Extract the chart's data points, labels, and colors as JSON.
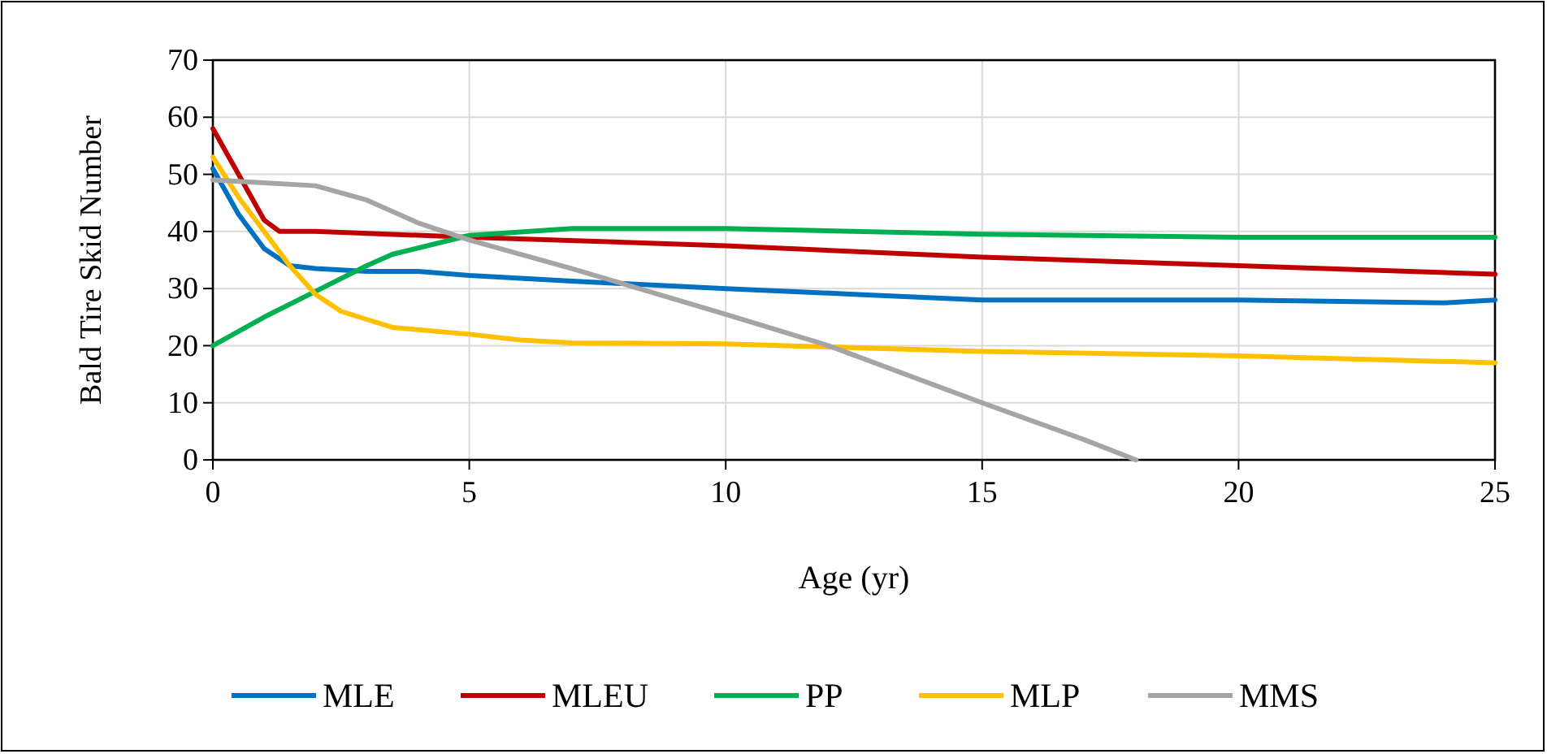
{
  "chart_data": {
    "type": "line",
    "xlabel": "Age (yr)",
    "ylabel": "Bald  Tire Skid Number",
    "xlim": [
      0,
      25
    ],
    "ylim": [
      0,
      70
    ],
    "xticks": [
      0,
      5,
      10,
      15,
      20,
      25
    ],
    "yticks": [
      0,
      10,
      20,
      30,
      40,
      50,
      60,
      70
    ],
    "grid": true,
    "legend": "bottom",
    "marker": "none",
    "line_style": "solid",
    "series": [
      {
        "name": "MLE",
        "color": "#0070c0",
        "x": [
          0,
          0.5,
          1,
          1.5,
          2,
          3,
          4,
          5,
          7,
          10,
          12.5,
          15,
          20,
          24,
          25
        ],
        "values": [
          51,
          43,
          37,
          34,
          33.5,
          33,
          33,
          32.3,
          31.3,
          30,
          29,
          28,
          28,
          27.5,
          28
        ]
      },
      {
        "name": "MLEU",
        "color": "#c00000",
        "x": [
          0,
          0.5,
          1,
          1.3,
          2,
          5,
          10,
          15,
          20,
          25
        ],
        "values": [
          58,
          50,
          42,
          40,
          40,
          39,
          37.5,
          35.5,
          34,
          32.5
        ]
      },
      {
        "name": "PP",
        "color": "#00b050",
        "x": [
          0,
          1,
          2,
          3,
          3.5,
          5,
          7,
          10,
          15,
          20,
          25
        ],
        "values": [
          20,
          25,
          29.5,
          34,
          36,
          39.3,
          40.5,
          40.5,
          39.5,
          39,
          39
        ]
      },
      {
        "name": "MLP",
        "color": "#ffc000",
        "x": [
          0,
          0.5,
          1,
          1.5,
          2,
          2.5,
          3.5,
          5,
          6,
          7,
          10,
          15,
          20,
          25
        ],
        "values": [
          53,
          46,
          40,
          34,
          29,
          26,
          23.2,
          22,
          21,
          20.5,
          20.3,
          19,
          18.2,
          17
        ]
      },
      {
        "name": "MMS",
        "color": "#a5a5a5",
        "x": [
          0,
          1,
          2,
          3,
          4,
          5,
          7,
          10,
          12,
          15,
          17,
          18
        ],
        "values": [
          49,
          48.5,
          48,
          45.5,
          41.5,
          38.5,
          33.5,
          25.5,
          20,
          10,
          3.5,
          0
        ]
      }
    ]
  }
}
